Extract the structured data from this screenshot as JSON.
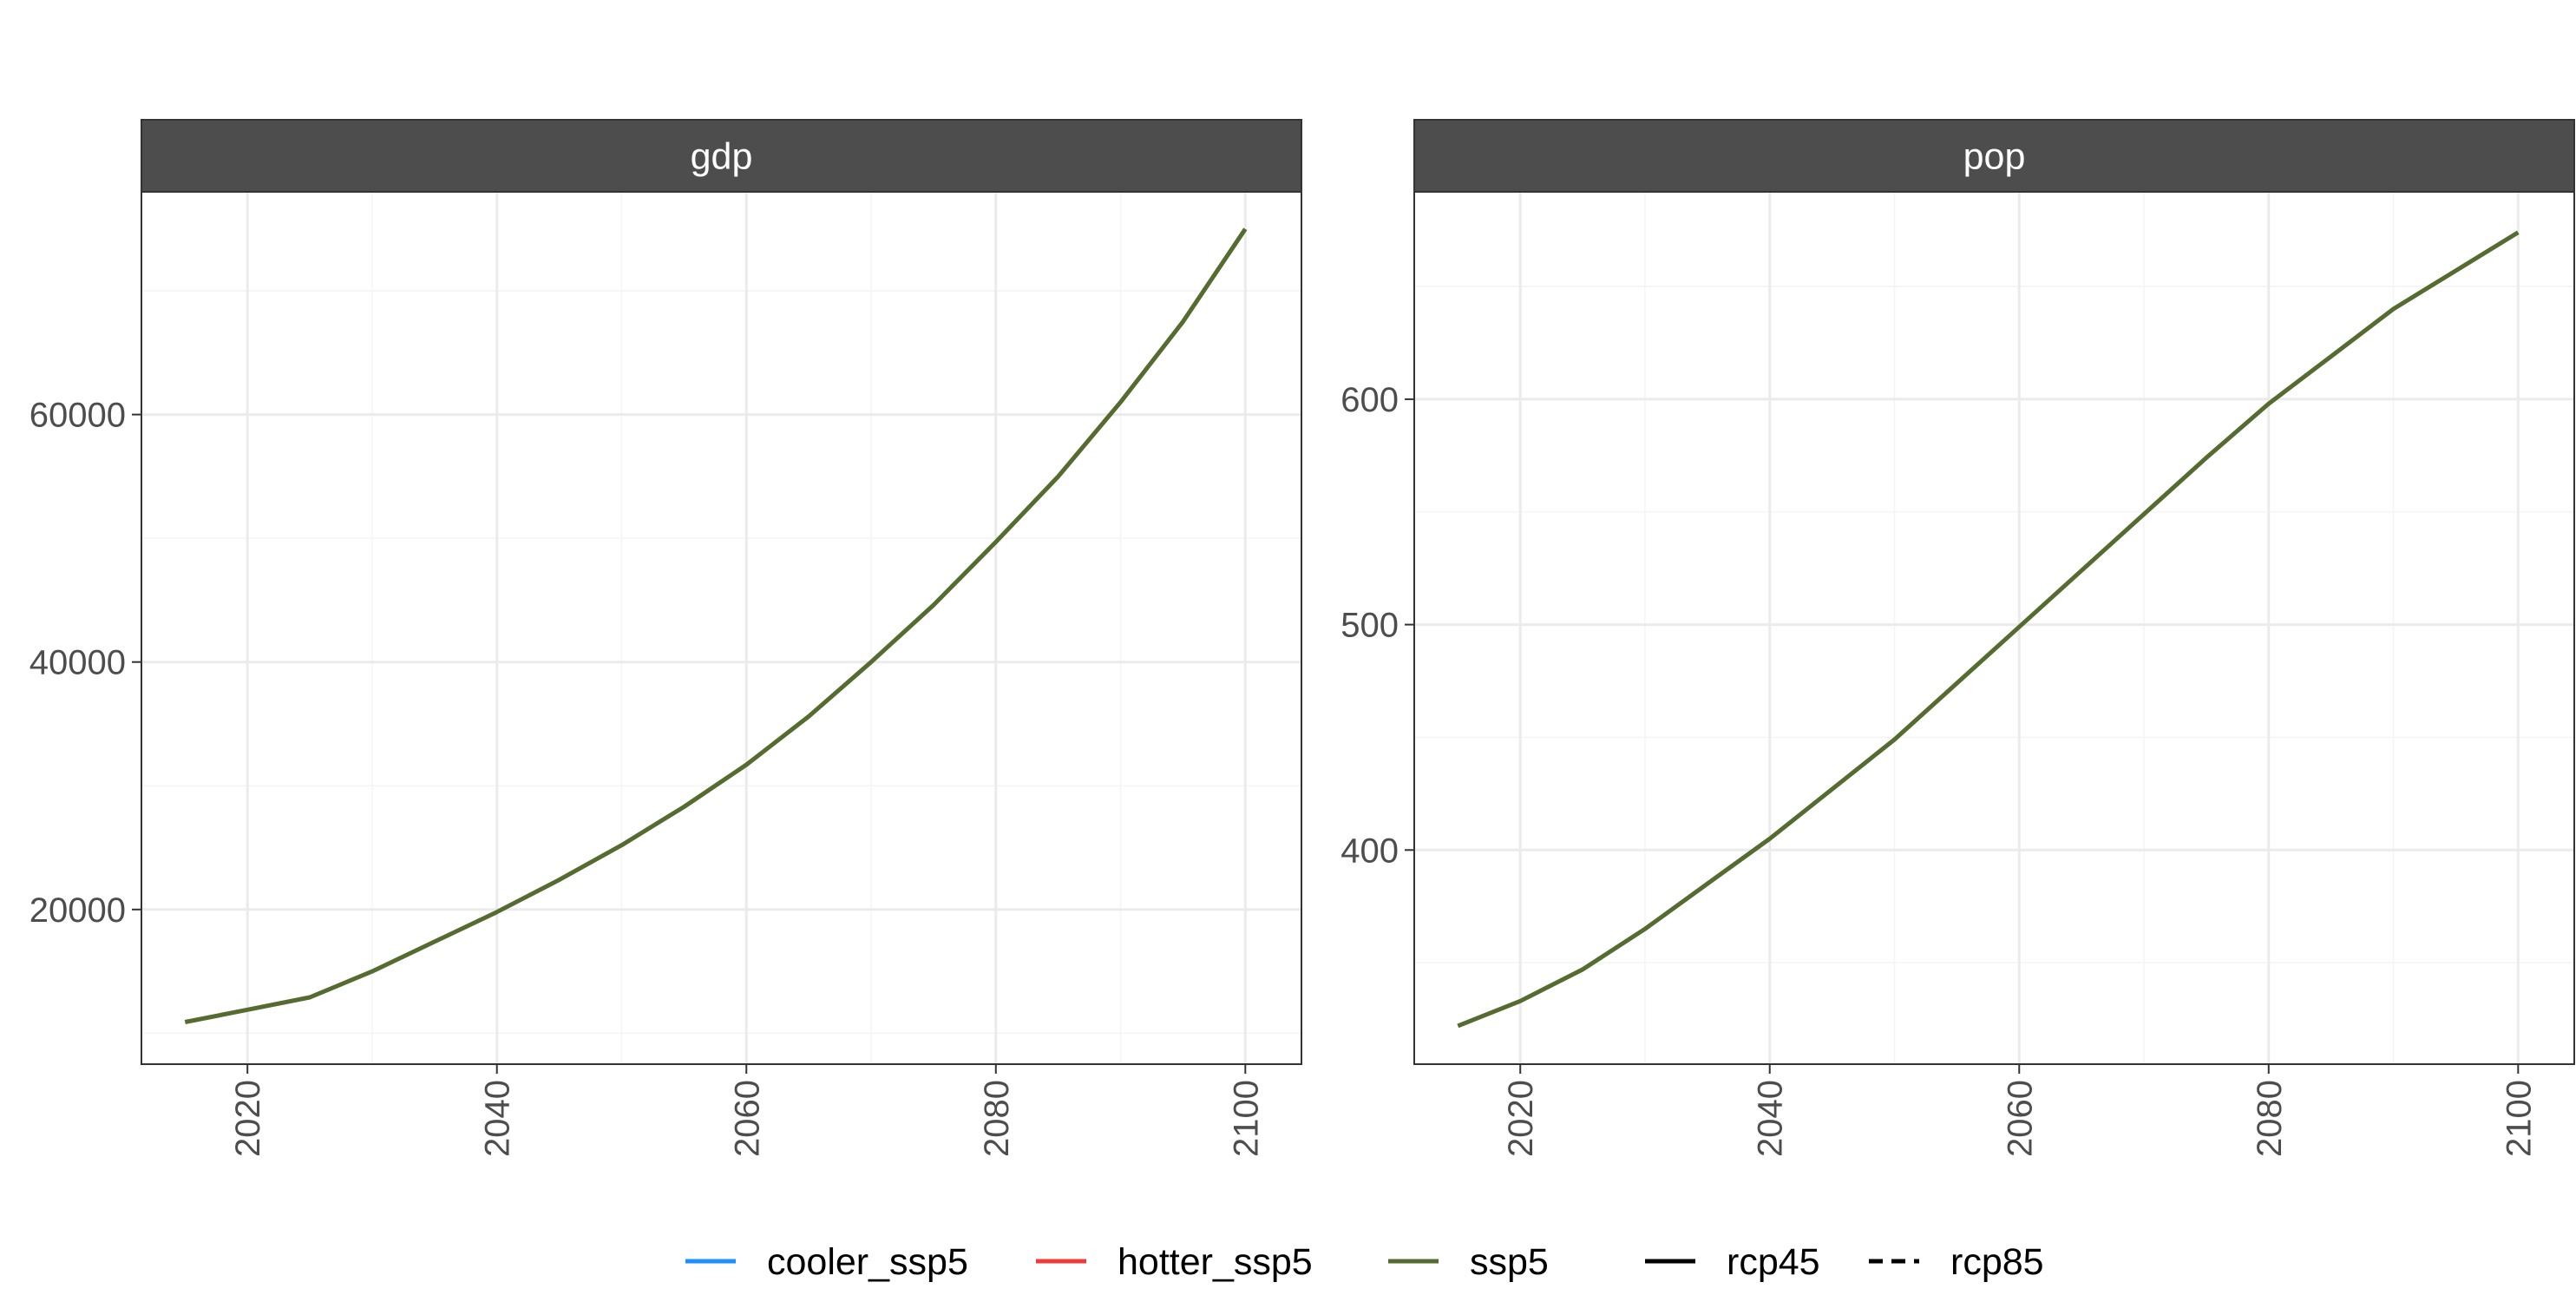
{
  "chart_data": [
    {
      "type": "line",
      "title": "gdp",
      "xlabel": "",
      "ylabel": "",
      "xlim": [
        2011.5,
        2104.5
      ],
      "ylim": [
        7500,
        78000
      ],
      "xticks": [
        2020,
        2040,
        2060,
        2080,
        2100
      ],
      "yticks": [
        20000,
        40000,
        60000
      ],
      "grid": true,
      "series": [
        {
          "name": "ssp5",
          "x": [
            2015,
            2020,
            2025,
            2030,
            2035,
            2040,
            2045,
            2050,
            2055,
            2060,
            2065,
            2070,
            2075,
            2080,
            2085,
            2090,
            2095,
            2100
          ],
          "values": [
            10900,
            11900,
            12900,
            15000,
            17400,
            19800,
            22400,
            25200,
            28300,
            31700,
            35600,
            40000,
            44600,
            49700,
            55000,
            61000,
            67500,
            75000
          ]
        }
      ]
    },
    {
      "type": "line",
      "title": "pop",
      "xlabel": "",
      "ylabel": "",
      "xlim": [
        2011.5,
        2104.5
      ],
      "ylim": [
        305,
        692
      ],
      "xticks": [
        2020,
        2040,
        2060,
        2080,
        2100
      ],
      "yticks": [
        400,
        500,
        600
      ],
      "grid": true,
      "series": [
        {
          "name": "ssp5",
          "x": [
            2015,
            2020,
            2025,
            2030,
            2035,
            2040,
            2045,
            2050,
            2055,
            2060,
            2065,
            2070,
            2075,
            2080,
            2085,
            2090,
            2095,
            2100
          ],
          "values": [
            322,
            333,
            347,
            365,
            385,
            405,
            427,
            449,
            474,
            499,
            524,
            549,
            574,
            598,
            619,
            640,
            657,
            674
          ]
        }
      ]
    }
  ],
  "legend": {
    "placement": "bottom",
    "color_items": [
      {
        "label": "cooler_ssp5",
        "color": "#1e90ff"
      },
      {
        "label": "hotter_ssp5",
        "color": "#ee3b3b"
      },
      {
        "label": "ssp5",
        "color": "#556b2f"
      }
    ],
    "linetype_items": [
      {
        "label": "rcp45",
        "dash": "solid"
      },
      {
        "label": "rcp85",
        "dash": "dashed"
      }
    ]
  },
  "colors": {
    "strip_background": "#4d4d4d",
    "strip_text": "#ffffff",
    "grid_major": "#ebebeb",
    "grid_minor": "#f5f5f5",
    "tick_text": "#4d4d4d"
  }
}
